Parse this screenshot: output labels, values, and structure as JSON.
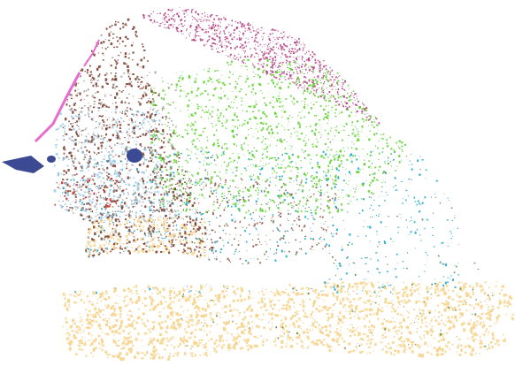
{
  "map": {
    "background": "#ffffff",
    "palette": {
      "magenta": "#b03a7d",
      "green": "#5ad22a",
      "brown": "#7a3a2a",
      "navy": "#3b4a93",
      "cyan": "#1aa6c8",
      "tan": "#f6d48e",
      "pink": "#e86bd0",
      "olive": "#3e7a3a",
      "red": "#d22a2a",
      "gray": "#9a9a9a",
      "lightblue": "#8fc6e6"
    }
  }
}
